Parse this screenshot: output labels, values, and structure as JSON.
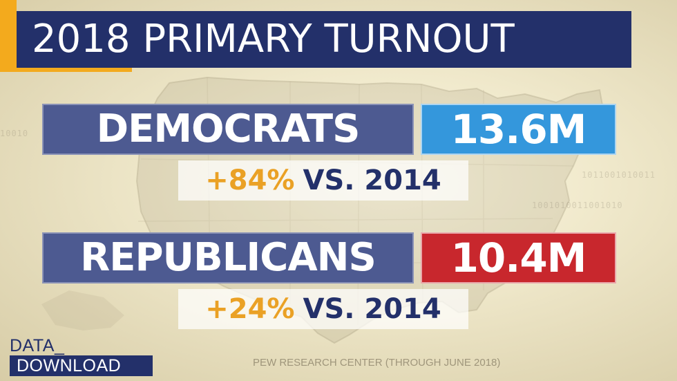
{
  "title": "2018 PRIMARY TURNOUT",
  "colors": {
    "navy": "#23306a",
    "party_box": "#4d5a91",
    "democrat_blue": "#3497dc",
    "republican_red": "#c8272d",
    "accent_orange": "#eaa125"
  },
  "democrats": {
    "label": "DEMOCRATS",
    "value": "13.6M",
    "change_pct": "+84%",
    "change_suffix": "VS. 2014"
  },
  "republicans": {
    "label": "REPUBLICANS",
    "value": "10.4M",
    "change_pct": "+24%",
    "change_suffix": "VS. 2014"
  },
  "logo": {
    "line1": "DATA_",
    "line2": "DOWNLOAD"
  },
  "source": "PEW RESEARCH CENTER (THROUGH JUNE 2018)"
}
